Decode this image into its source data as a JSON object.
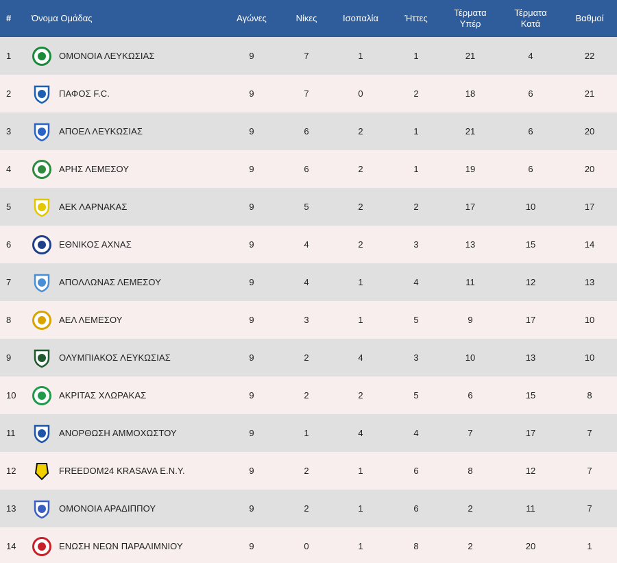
{
  "columns": {
    "pos": "#",
    "team": "Όνομα Ομάδας",
    "played": "Αγώνες",
    "wins": "Νίκες",
    "draws": "Ισοπαλία",
    "losses": "Ήττες",
    "goals_for_line1": "Τέρματα",
    "goals_for_line2": "Υπέρ",
    "goals_against_line1": "Τέρματα",
    "goals_against_line2": "Κατά",
    "points": "Βαθμοί"
  },
  "rows": [
    {
      "pos": "1",
      "team": "ΟΜΟΝΟΙΑ ΛΕΥΚΩΣΙΑΣ",
      "crest": "omonoia-crest-icon",
      "color": "#1a8a3a",
      "played": "9",
      "wins": "7",
      "draws": "1",
      "losses": "1",
      "gf": "21",
      "ga": "4",
      "pts": "22"
    },
    {
      "pos": "2",
      "team": "ΠΑΦΟΣ F.C.",
      "crest": "pafos-crest-icon",
      "color": "#1d5fb0",
      "played": "9",
      "wins": "7",
      "draws": "0",
      "losses": "2",
      "gf": "18",
      "ga": "6",
      "pts": "21"
    },
    {
      "pos": "3",
      "team": "ΑΠΟΕΛ ΛΕΥΚΩΣΙΑΣ",
      "crest": "apoel-crest-icon",
      "color": "#2a63c4",
      "played": "9",
      "wins": "6",
      "draws": "2",
      "losses": "1",
      "gf": "21",
      "ga": "6",
      "pts": "20"
    },
    {
      "pos": "4",
      "team": "ΑΡΗΣ ΛΕΜΕΣΟΥ",
      "crest": "aris-crest-icon",
      "color": "#2e8b3e",
      "played": "9",
      "wins": "6",
      "draws": "2",
      "losses": "1",
      "gf": "19",
      "ga": "6",
      "pts": "20"
    },
    {
      "pos": "5",
      "team": "ΑΕΚ ΛΑΡΝΑΚΑΣ",
      "crest": "aek-crest-icon",
      "color": "#e3c800",
      "played": "9",
      "wins": "5",
      "draws": "2",
      "losses": "2",
      "gf": "17",
      "ga": "10",
      "pts": "17"
    },
    {
      "pos": "6",
      "team": "ΕΘΝΙΚΟΣ ΑΧΝΑΣ",
      "crest": "ethnikos-crest-icon",
      "color": "#1f3f8a",
      "played": "9",
      "wins": "4",
      "draws": "2",
      "losses": "3",
      "gf": "13",
      "ga": "15",
      "pts": "14"
    },
    {
      "pos": "7",
      "team": "ΑΠΟΛΛΩΝΑΣ ΛΕΜΕΣΟΥ",
      "crest": "apollon-crest-icon",
      "color": "#4a8fd6",
      "played": "9",
      "wins": "4",
      "draws": "1",
      "losses": "4",
      "gf": "11",
      "ga": "12",
      "pts": "13"
    },
    {
      "pos": "8",
      "team": "ΑΕΛ ΛΕΜΕΣΟΥ",
      "crest": "ael-crest-icon",
      "color": "#d9a400",
      "played": "9",
      "wins": "3",
      "draws": "1",
      "losses": "5",
      "gf": "9",
      "ga": "17",
      "pts": "10"
    },
    {
      "pos": "9",
      "team": "ΟΛΥΜΠΙΑΚΟΣ ΛΕΥΚΩΣΙΑΣ",
      "crest": "olympiakos-crest-icon",
      "color": "#1f5a2e",
      "played": "9",
      "wins": "2",
      "draws": "4",
      "losses": "3",
      "gf": "10",
      "ga": "13",
      "pts": "10"
    },
    {
      "pos": "10",
      "team": "ΑΚΡΙΤΑΣ ΧΛΩΡΑΚΑΣ",
      "crest": "akritas-crest-icon",
      "color": "#1e9a4a",
      "played": "9",
      "wins": "2",
      "draws": "2",
      "losses": "5",
      "gf": "6",
      "ga": "15",
      "pts": "8"
    },
    {
      "pos": "11",
      "team": "ΑΝΟΡΘΩΣΗ ΑΜΜΟΧΩΣΤΟΥ",
      "crest": "anorthosis-crest-icon",
      "color": "#1f55a8",
      "played": "9",
      "wins": "1",
      "draws": "4",
      "losses": "4",
      "gf": "7",
      "ga": "17",
      "pts": "7"
    },
    {
      "pos": "12",
      "team": "FREEDOM24 KRASAVA E.N.Y.",
      "crest": "krasava-crest-icon",
      "color": "#f2d000",
      "played": "9",
      "wins": "2",
      "draws": "1",
      "losses": "6",
      "gf": "8",
      "ga": "12",
      "pts": "7"
    },
    {
      "pos": "13",
      "team": "ΟΜΟΝΟΙΑ ΑΡΑΔΙΠΠΟΥ",
      "crest": "omonoia-aradippou-crest-icon",
      "color": "#3a5fc0",
      "played": "9",
      "wins": "2",
      "draws": "1",
      "losses": "6",
      "gf": "2",
      "ga": "11",
      "pts": "7"
    },
    {
      "pos": "14",
      "team": "ΕΝΩΣΗ ΝΕΩΝ ΠΑΡΑΛΙΜΝΙΟΥ",
      "crest": "enp-crest-icon",
      "color": "#c8202a",
      "played": "9",
      "wins": "0",
      "draws": "1",
      "losses": "8",
      "gf": "2",
      "ga": "20",
      "pts": "1"
    }
  ]
}
